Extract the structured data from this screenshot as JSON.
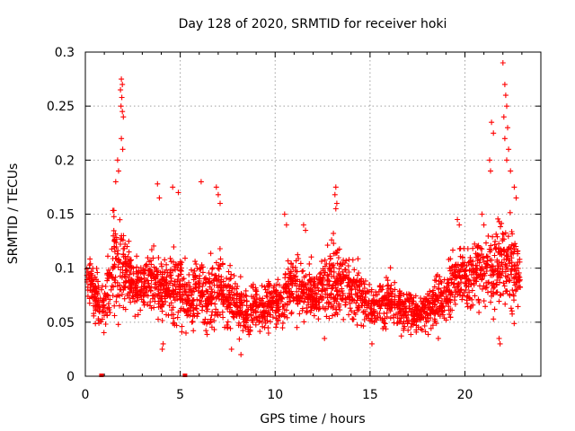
{
  "chart_data": {
    "type": "scatter",
    "title": "Day 128 of 2020, SRMTID for receiver hoki",
    "xlabel": "GPS time / hours",
    "ylabel": "SRMTID / TECUs",
    "xlim": [
      0,
      24
    ],
    "ylim": [
      0,
      0.3
    ],
    "xticks": [
      0,
      5,
      10,
      15,
      20
    ],
    "xtick_labels": [
      "0",
      "5",
      "10",
      "15",
      "20"
    ],
    "yticks": [
      0,
      0.05,
      0.1,
      0.15,
      0.2,
      0.25,
      0.3
    ],
    "ytick_labels": [
      "0",
      "0.05",
      "0.1",
      "0.15",
      "0.2",
      "0.25",
      "0.3"
    ],
    "grid": true,
    "marker": "plus",
    "color": "#ff0000",
    "baseline": 0.08,
    "profile": [
      [
        0.0,
        0.09,
        0.02
      ],
      [
        0.5,
        0.08,
        0.025
      ],
      [
        1.0,
        0.06,
        0.025
      ],
      [
        1.5,
        0.105,
        0.05
      ],
      [
        2.0,
        0.1,
        0.045
      ],
      [
        2.5,
        0.085,
        0.025
      ],
      [
        3.0,
        0.085,
        0.025
      ],
      [
        3.5,
        0.095,
        0.035
      ],
      [
        4.0,
        0.08,
        0.03
      ],
      [
        4.5,
        0.08,
        0.03
      ],
      [
        5.0,
        0.085,
        0.035
      ],
      [
        5.5,
        0.065,
        0.025
      ],
      [
        6.0,
        0.085,
        0.03
      ],
      [
        6.5,
        0.07,
        0.03
      ],
      [
        7.0,
        0.085,
        0.035
      ],
      [
        7.5,
        0.075,
        0.03
      ],
      [
        8.0,
        0.065,
        0.025
      ],
      [
        8.5,
        0.06,
        0.025
      ],
      [
        9.0,
        0.065,
        0.025
      ],
      [
        9.5,
        0.065,
        0.025
      ],
      [
        10.0,
        0.07,
        0.025
      ],
      [
        10.5,
        0.075,
        0.025
      ],
      [
        11.0,
        0.085,
        0.035
      ],
      [
        11.5,
        0.08,
        0.03
      ],
      [
        12.0,
        0.075,
        0.025
      ],
      [
        12.5,
        0.08,
        0.03
      ],
      [
        13.0,
        0.085,
        0.04
      ],
      [
        13.5,
        0.085,
        0.03
      ],
      [
        14.0,
        0.08,
        0.03
      ],
      [
        14.5,
        0.075,
        0.025
      ],
      [
        15.0,
        0.065,
        0.02
      ],
      [
        15.5,
        0.065,
        0.02
      ],
      [
        16.0,
        0.07,
        0.025
      ],
      [
        16.5,
        0.065,
        0.02
      ],
      [
        17.0,
        0.06,
        0.02
      ],
      [
        17.5,
        0.06,
        0.02
      ],
      [
        18.0,
        0.06,
        0.02
      ],
      [
        18.5,
        0.07,
        0.025
      ],
      [
        19.0,
        0.075,
        0.025
      ],
      [
        19.5,
        0.085,
        0.03
      ],
      [
        20.0,
        0.09,
        0.03
      ],
      [
        20.5,
        0.095,
        0.03
      ],
      [
        21.0,
        0.1,
        0.035
      ],
      [
        21.5,
        0.095,
        0.035
      ],
      [
        22.0,
        0.11,
        0.05
      ],
      [
        22.5,
        0.1,
        0.04
      ],
      [
        23.0,
        0.09,
        0.03
      ]
    ],
    "highlights": [
      [
        1.9,
        0.275
      ],
      [
        1.95,
        0.27
      ],
      [
        1.85,
        0.265
      ],
      [
        1.92,
        0.258
      ],
      [
        1.88,
        0.25
      ],
      [
        1.95,
        0.245
      ],
      [
        2.0,
        0.24
      ],
      [
        1.9,
        0.22
      ],
      [
        1.97,
        0.21
      ],
      [
        1.7,
        0.2
      ],
      [
        1.75,
        0.19
      ],
      [
        1.6,
        0.18
      ],
      [
        3.8,
        0.178
      ],
      [
        3.9,
        0.165
      ],
      [
        4.6,
        0.175
      ],
      [
        4.9,
        0.17
      ],
      [
        6.1,
        0.18
      ],
      [
        6.9,
        0.175
      ],
      [
        7.0,
        0.168
      ],
      [
        7.1,
        0.16
      ],
      [
        13.2,
        0.175
      ],
      [
        13.15,
        0.168
      ],
      [
        13.25,
        0.16
      ],
      [
        13.2,
        0.155
      ],
      [
        21.4,
        0.235
      ],
      [
        21.5,
        0.225
      ],
      [
        21.3,
        0.2
      ],
      [
        21.35,
        0.19
      ],
      [
        22.0,
        0.29
      ],
      [
        22.1,
        0.27
      ],
      [
        22.15,
        0.26
      ],
      [
        22.2,
        0.25
      ],
      [
        22.05,
        0.24
      ],
      [
        22.25,
        0.23
      ],
      [
        22.1,
        0.22
      ],
      [
        22.3,
        0.21
      ],
      [
        22.2,
        0.2
      ],
      [
        22.4,
        0.19
      ],
      [
        22.6,
        0.175
      ],
      [
        22.7,
        0.165
      ],
      [
        11.5,
        0.14
      ],
      [
        11.6,
        0.135
      ],
      [
        10.5,
        0.15
      ],
      [
        10.6,
        0.14
      ],
      [
        19.6,
        0.145
      ],
      [
        19.7,
        0.14
      ],
      [
        20.9,
        0.15
      ],
      [
        21.0,
        0.14
      ],
      [
        2.2,
        0.12
      ],
      [
        2.3,
        0.115
      ],
      [
        5.3,
        0.04
      ],
      [
        4.1,
        0.03
      ],
      [
        4.05,
        0.025
      ],
      [
        8.2,
        0.02
      ],
      [
        7.7,
        0.025
      ],
      [
        15.1,
        0.03
      ],
      [
        21.8,
        0.035
      ],
      [
        21.85,
        0.03
      ],
      [
        18.6,
        0.035
      ],
      [
        12.6,
        0.035
      ]
    ],
    "zero_marks": [
      0.85,
      5.25
    ],
    "seed": 128
  }
}
